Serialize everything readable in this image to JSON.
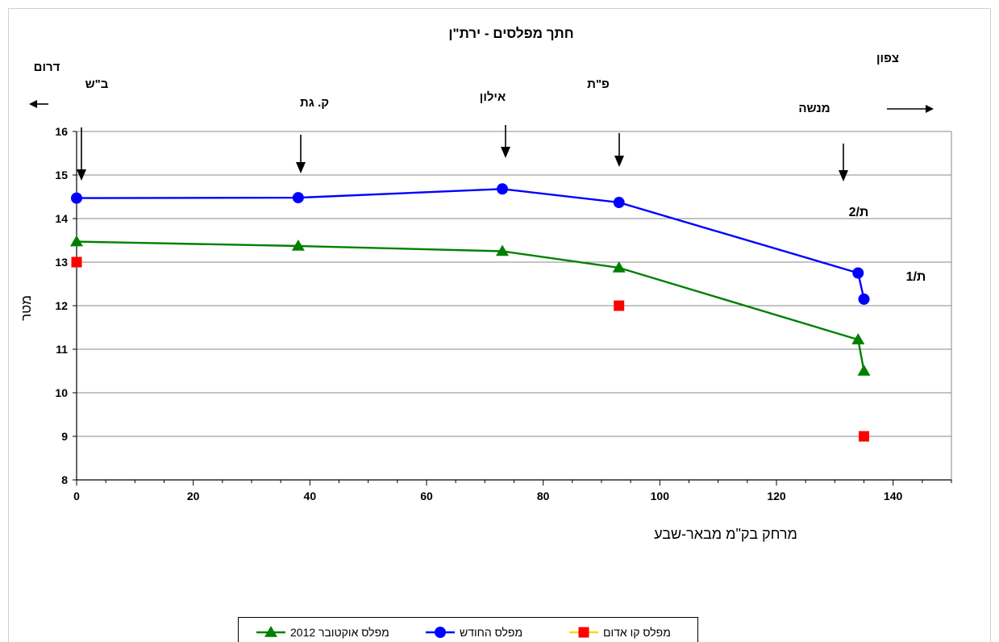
{
  "chart_data": {
    "type": "line",
    "title": "חתך מפלסים - ירת\"ן",
    "xlabel": "מרחק בק\"מ מבאר-שבע",
    "ylabel": "מטר",
    "xlim": [
      0,
      150
    ],
    "ylim": [
      8,
      16
    ],
    "x_ticks": [
      0,
      20,
      40,
      60,
      80,
      100,
      120,
      140
    ],
    "x_minor_step": 5,
    "y_ticks": [
      8,
      9,
      10,
      11,
      12,
      13,
      14,
      15,
      16
    ],
    "grid": {
      "horizontal": true,
      "vertical": false
    },
    "legend_position": "bottom",
    "series": [
      {
        "name": "מפלס אוקטובר 2012",
        "color": "#008000",
        "marker": "triangle",
        "points": [
          [
            0,
            13.47
          ],
          [
            38,
            13.37
          ],
          [
            73,
            13.25
          ],
          [
            93,
            12.87
          ],
          [
            134,
            11.22
          ],
          [
            135,
            10.5
          ]
        ]
      },
      {
        "name": "מפלס החודש",
        "color": "#0000ff",
        "marker": "circle",
        "points": [
          [
            0,
            14.47
          ],
          [
            38,
            14.48
          ],
          [
            73,
            14.68
          ],
          [
            93,
            14.37
          ],
          [
            134,
            12.75
          ],
          [
            135,
            12.15
          ]
        ]
      },
      {
        "name": "מפלס קו אדום",
        "color": "#ff0000",
        "legend_line_color": "#ffd700",
        "marker": "square",
        "points": [
          [
            0,
            13.0
          ],
          [
            93,
            12.0
          ],
          [
            135,
            9.0
          ]
        ]
      }
    ],
    "legend_order": [
      0,
      1,
      2
    ],
    "annotations": {
      "direction_south": "דרום",
      "direction_north": "צפון",
      "stations": [
        {
          "label": "ב\"ש",
          "x": 1
        },
        {
          "label": "ק. גת",
          "x": 38
        },
        {
          "label": "אילון",
          "x": 74
        },
        {
          "label": "פ\"ת",
          "x": 93
        },
        {
          "label": "מנשה",
          "x": 131
        }
      ],
      "well_labels": [
        "ת/2",
        "ת/1"
      ]
    }
  }
}
